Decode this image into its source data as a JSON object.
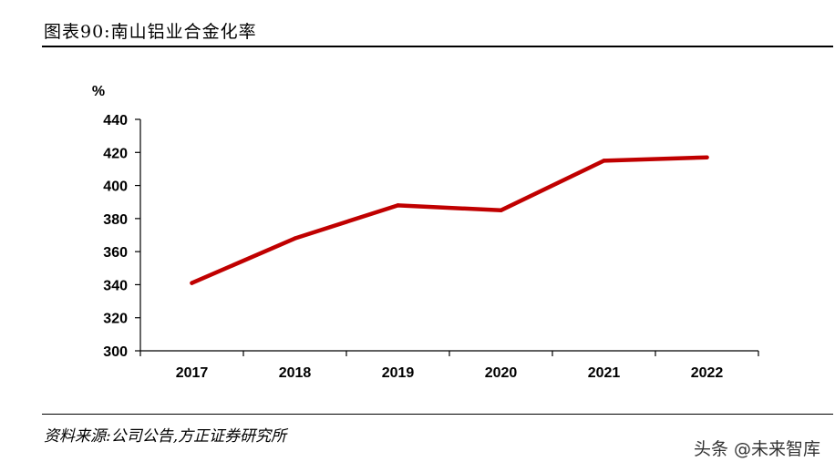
{
  "header": {
    "title": "图表90:南山铝业合金化率"
  },
  "footer": {
    "source": "资料来源:公司公告,方正证券研究所",
    "watermark": "头条 @未来智库"
  },
  "colors": {
    "line": "#c00000",
    "axis": "#000000"
  },
  "chart_data": {
    "type": "line",
    "title": "",
    "xlabel": "",
    "ylabel": "%",
    "categories": [
      "2017",
      "2018",
      "2019",
      "2020",
      "2021",
      "2022"
    ],
    "series": [
      {
        "values": [
          341,
          368,
          388,
          385,
          415,
          417
        ]
      }
    ],
    "ylim": [
      300,
      440
    ],
    "yticks": [
      300,
      320,
      340,
      360,
      380,
      400,
      420,
      440
    ],
    "grid": false,
    "legend": "none"
  }
}
